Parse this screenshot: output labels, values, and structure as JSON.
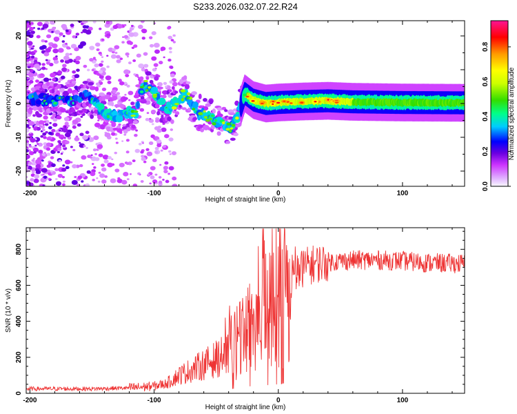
{
  "title": "S233.2026.032.07.22.R24",
  "chart_data": [
    {
      "type": "heatmap",
      "name": "spectrogram",
      "xlabel": "Height of straight line (km)",
      "ylabel": "Frequency (Hz)",
      "xlim": [
        -203,
        150
      ],
      "ylim": [
        -24.5,
        24.5
      ],
      "xticks": [
        -200,
        -100,
        0,
        100
      ],
      "yticks": [
        20,
        10,
        0,
        -10,
        -20
      ],
      "colorbar": {
        "label": "Normalized spectral amplitude",
        "range": [
          0,
          0.95
        ],
        "ticks": [
          0.8,
          0.6,
          0.4,
          0.2,
          0.0
        ],
        "colors": [
          "#f8f8ff",
          "#cc33ff",
          "#6a00e0",
          "#0000ff",
          "#00ccff",
          "#00ff88",
          "#33dd00",
          "#ccff00",
          "#ffff00",
          "#ff9900",
          "#ff0000",
          "#ff1493"
        ]
      },
      "dominant_ridge": [
        {
          "x": -195,
          "y": 1.5
        },
        {
          "x": -170,
          "y": 0.5
        },
        {
          "x": -155,
          "y": 3
        },
        {
          "x": -140,
          "y": -3
        },
        {
          "x": -125,
          "y": -3.5
        },
        {
          "x": -115,
          "y": -2.5
        },
        {
          "x": -108,
          "y": 6
        },
        {
          "x": -100,
          "y": 3.5
        },
        {
          "x": -90,
          "y": -2
        },
        {
          "x": -75,
          "y": 3
        },
        {
          "x": -65,
          "y": -2.5
        },
        {
          "x": -55,
          "y": -4
        },
        {
          "x": -45,
          "y": -6
        },
        {
          "x": -38,
          "y": -7
        },
        {
          "x": -32,
          "y": -3
        },
        {
          "x": -27,
          "y": 3
        },
        {
          "x": -20,
          "y": 1
        },
        {
          "x": -10,
          "y": 0
        },
        {
          "x": 0,
          "y": 0.3
        },
        {
          "x": 20,
          "y": 0.6
        },
        {
          "x": 40,
          "y": 0.8
        },
        {
          "x": 60,
          "y": 0.5
        },
        {
          "x": 100,
          "y": 0.3
        },
        {
          "x": 150,
          "y": 0.2
        }
      ]
    },
    {
      "type": "line",
      "name": "snr",
      "xlabel": "Height of straight line (km)",
      "ylabel": "SNR (10 * v/v)",
      "xlim": [
        -203,
        150
      ],
      "ylim": [
        0,
        920
      ],
      "xticks": [
        -200,
        -100,
        0,
        100
      ],
      "yticks": [
        0,
        200,
        400,
        600,
        800
      ],
      "color": "#ee3333",
      "envelope": [
        {
          "x": -203,
          "y": 25
        },
        {
          "x": -150,
          "y": 25
        },
        {
          "x": -120,
          "y": 30
        },
        {
          "x": -100,
          "y": 40
        },
        {
          "x": -90,
          "y": 55
        },
        {
          "x": -80,
          "y": 100
        },
        {
          "x": -60,
          "y": 160
        },
        {
          "x": -40,
          "y": 220
        },
        {
          "x": -30,
          "y": 300
        },
        {
          "x": -20,
          "y": 420
        },
        {
          "x": -10,
          "y": 450
        },
        {
          "x": 0,
          "y": 500
        },
        {
          "x": 10,
          "y": 620
        },
        {
          "x": 20,
          "y": 700
        },
        {
          "x": 30,
          "y": 720
        },
        {
          "x": 40,
          "y": 730
        },
        {
          "x": 60,
          "y": 740
        },
        {
          "x": 80,
          "y": 740
        },
        {
          "x": 100,
          "y": 735
        },
        {
          "x": 120,
          "y": 725
        },
        {
          "x": 150,
          "y": 720
        }
      ]
    }
  ]
}
